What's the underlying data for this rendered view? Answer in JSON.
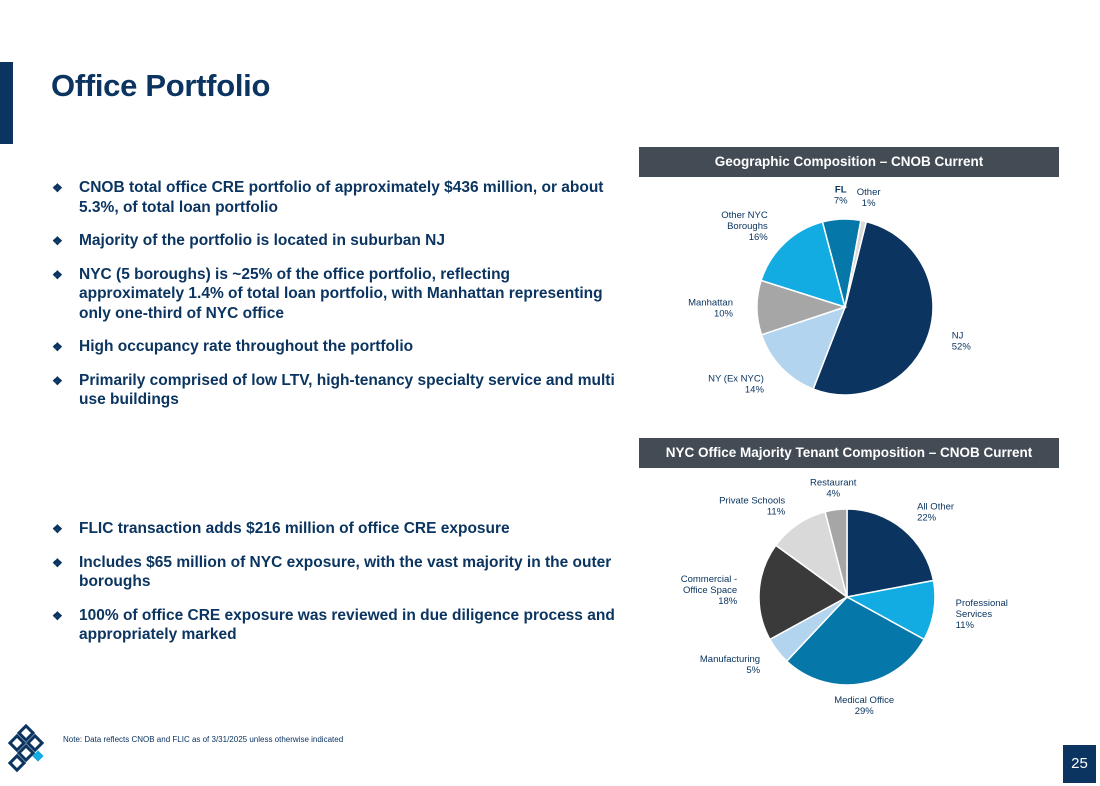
{
  "title": "Office Portfolio",
  "bullets_top": [
    "CNOB total office CRE portfolio of approximately $436 million, or about 5.3%, of total loan portfolio",
    "Majority of the portfolio is located in suburban NJ",
    "NYC (5 boroughs) is ~25% of the office portfolio, reflecting approximately 1.4% of total loan portfolio, with Manhattan representing only one-third of NYC office",
    "High occupancy rate throughout the portfolio",
    "Primarily comprised of low LTV, high-tenancy specialty service and multi use buildings"
  ],
  "bullets_bottom": [
    "FLIC transaction adds $216 million of office CRE exposure",
    "Includes $65 million of NYC exposure, with the vast majority in the outer boroughs",
    "100% of office CRE exposure was reviewed in due diligence process and appropriately marked"
  ],
  "note": "Note: Data reflects CNOB and FLIC as of 3/31/2025 unless otherwise indicated",
  "page_number": "25",
  "icons": {
    "bullet": "diamond-bullet-icon",
    "logo": "connectone-logo-icon"
  },
  "chart_data": [
    {
      "type": "pie",
      "title": "Geographic Composition – CNOB Current",
      "start_angle_deg": 14,
      "slices": [
        {
          "label": "NJ",
          "value": 52,
          "display": "52%",
          "color": "#0b3560"
        },
        {
          "label": "NY (Ex NYC)",
          "value": 14,
          "display": "14%",
          "color": "#b3d4ee"
        },
        {
          "label": "Manhattan",
          "value": 10,
          "display": "10%",
          "color": "#a6a6a6"
        },
        {
          "label": "Other NYC Boroughs",
          "value": 16,
          "display": "16%",
          "color": "#12abe2"
        },
        {
          "label": "FL",
          "value": 7,
          "display": "7%",
          "color": "#0577a8"
        },
        {
          "label": "Other",
          "value": 1,
          "display": "1%",
          "color": "#d9d9d9"
        }
      ]
    },
    {
      "type": "pie",
      "title": "NYC Office Majority Tenant Composition – CNOB Current",
      "start_angle_deg": 0,
      "slices": [
        {
          "label": "All Other",
          "value": 22,
          "display": "22%",
          "color": "#0b3560"
        },
        {
          "label": "Professional Services",
          "value": 11,
          "display": "11%",
          "color": "#12abe2"
        },
        {
          "label": "Medical Office",
          "value": 29,
          "display": "29%",
          "color": "#0577a8"
        },
        {
          "label": "Manufacturing",
          "value": 5,
          "display": "5%",
          "color": "#b3d4ee"
        },
        {
          "label": "Commercial - Office Space",
          "value": 18,
          "display": "18%",
          "color": "#3a3a3a"
        },
        {
          "label": "Private Schools",
          "value": 11,
          "display": "11%",
          "color": "#d9d9d9"
        },
        {
          "label": "Restaurant",
          "value": 4,
          "display": "4%",
          "color": "#a6a6a6"
        }
      ]
    }
  ],
  "label_lines": {
    "geo": [
      [
        "NJ"
      ],
      [
        "NY (Ex NYC)"
      ],
      [
        "Manhattan"
      ],
      [
        "Other NYC",
        "Boroughs"
      ],
      [
        "FL"
      ],
      [
        "Other"
      ]
    ],
    "nyc": [
      [
        "All Other"
      ],
      [
        "Professional",
        "Services"
      ],
      [
        "Medical Office"
      ],
      [
        "Manufacturing"
      ],
      [
        "Commercial -",
        "Office Space"
      ],
      [
        "Private Schools"
      ],
      [
        "Restaurant"
      ]
    ]
  }
}
